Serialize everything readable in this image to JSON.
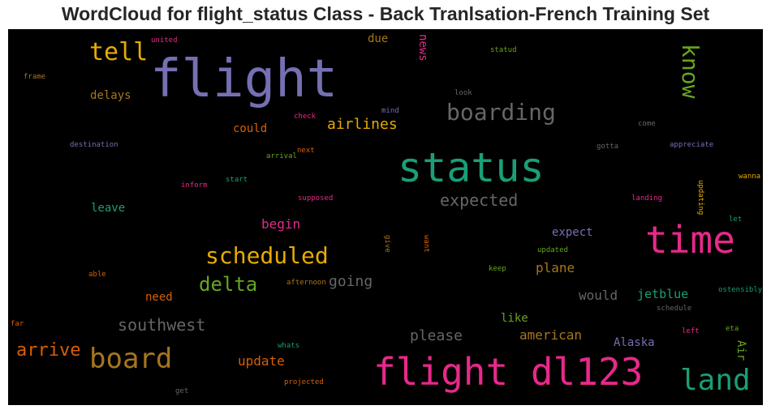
{
  "title": "WordCloud for flight_status Class - Back Tranlsation-French Training Set",
  "palette": {
    "background": "#000000",
    "purple": "#7570b3",
    "teal": "#1b9e77",
    "pink": "#e7298a",
    "orange": "#d95f02",
    "gold": "#e6ab02",
    "green": "#66a61e",
    "brown": "#a6761d",
    "gray": "#666666"
  },
  "chart_data": {
    "type": "wordcloud",
    "title": "WordCloud for flight_status Class - Back Tranlsation-French Training Set",
    "words": [
      {
        "text": "flight",
        "color": "#7570b3"
      },
      {
        "text": "status",
        "color": "#1b9e77"
      },
      {
        "text": "flight dl123",
        "color": "#e7298a"
      },
      {
        "text": "time",
        "color": "#e7298a"
      },
      {
        "text": "board",
        "color": "#a6761d"
      },
      {
        "text": "land",
        "color": "#1b9e77"
      },
      {
        "text": "boarding",
        "color": "#666666"
      },
      {
        "text": "tell",
        "color": "#e6ab02"
      },
      {
        "text": "know",
        "color": "#66a61e"
      },
      {
        "text": "scheduled",
        "color": "#e6ab02"
      },
      {
        "text": "delta",
        "color": "#66a61e"
      },
      {
        "text": "arrive",
        "color": "#d95f02"
      },
      {
        "text": "southwest",
        "color": "#666666"
      },
      {
        "text": "expected",
        "color": "#666666"
      },
      {
        "text": "airlines",
        "color": "#e6ab02"
      },
      {
        "text": "going",
        "color": "#666666"
      },
      {
        "text": "please",
        "color": "#666666"
      },
      {
        "text": "american",
        "color": "#a6761d"
      },
      {
        "text": "update",
        "color": "#d95f02"
      },
      {
        "text": "plane",
        "color": "#a6761d"
      },
      {
        "text": "would",
        "color": "#666666"
      },
      {
        "text": "begin",
        "color": "#e7298a"
      },
      {
        "text": "jetblue",
        "color": "#1b9e77"
      },
      {
        "text": "expect",
        "color": "#7570b3"
      },
      {
        "text": "leave",
        "color": "#1b9e77"
      },
      {
        "text": "could",
        "color": "#d95f02"
      },
      {
        "text": "delays",
        "color": "#a6761d"
      },
      {
        "text": "need",
        "color": "#d95f02"
      },
      {
        "text": "like",
        "color": "#66a61e"
      },
      {
        "text": "Alaska",
        "color": "#7570b3"
      },
      {
        "text": "due",
        "color": "#a6761d"
      },
      {
        "text": "news",
        "color": "#e7298a"
      },
      {
        "text": "Air",
        "color": "#66a61e"
      },
      {
        "text": "united",
        "color": "#e7298a"
      },
      {
        "text": "frame",
        "color": "#a6761d"
      },
      {
        "text": "statud",
        "color": "#66a61e"
      },
      {
        "text": "look",
        "color": "#666666"
      },
      {
        "text": "mind",
        "color": "#7570b3"
      },
      {
        "text": "check",
        "color": "#e7298a"
      },
      {
        "text": "come",
        "color": "#666666"
      },
      {
        "text": "destination",
        "color": "#7570b3"
      },
      {
        "text": "next",
        "color": "#d95f02"
      },
      {
        "text": "arrival",
        "color": "#66a61e"
      },
      {
        "text": "gotta",
        "color": "#666666"
      },
      {
        "text": "appreciate",
        "color": "#7570b3"
      },
      {
        "text": "start",
        "color": "#1b9e77"
      },
      {
        "text": "inform",
        "color": "#e7298a"
      },
      {
        "text": "updating",
        "color": "#e6ab02"
      },
      {
        "text": "wanna",
        "color": "#e6ab02"
      },
      {
        "text": "supposed",
        "color": "#e7298a"
      },
      {
        "text": "landing",
        "color": "#e7298a"
      },
      {
        "text": "let",
        "color": "#1b9e77"
      },
      {
        "text": "give",
        "color": "#a6761d"
      },
      {
        "text": "want",
        "color": "#d95f02"
      },
      {
        "text": "updated",
        "color": "#66a61e"
      },
      {
        "text": "keep",
        "color": "#66a61e"
      },
      {
        "text": "able",
        "color": "#d95f02"
      },
      {
        "text": "afternoon",
        "color": "#a6761d"
      },
      {
        "text": "ostensibly",
        "color": "#1b9e77"
      },
      {
        "text": "schedule",
        "color": "#666666"
      },
      {
        "text": "far",
        "color": "#d95f02"
      },
      {
        "text": "whats",
        "color": "#1b9e77"
      },
      {
        "text": "left",
        "color": "#e7298a"
      },
      {
        "text": "eta",
        "color": "#66a61e"
      },
      {
        "text": "projected",
        "color": "#d95f02"
      },
      {
        "text": "get",
        "color": "#666666"
      }
    ]
  }
}
